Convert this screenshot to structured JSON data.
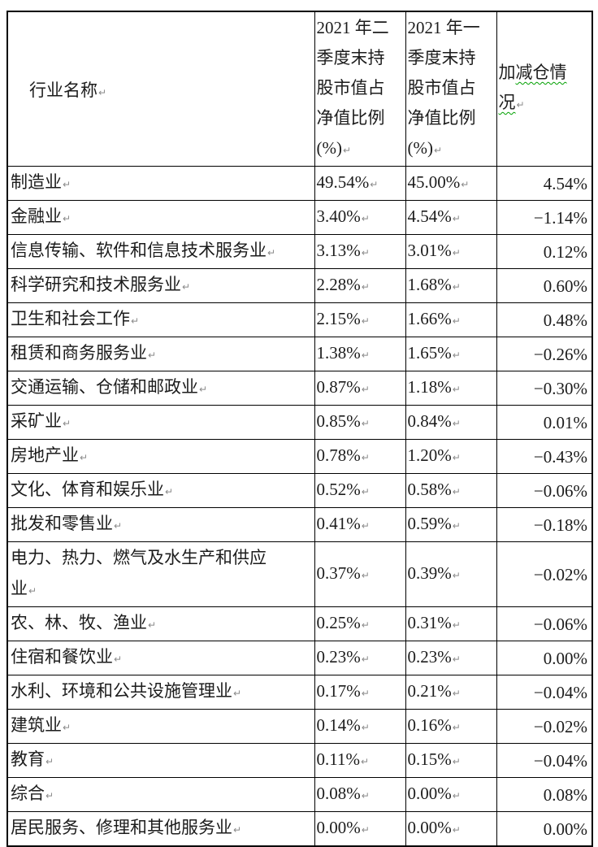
{
  "colors": {
    "border": "#000000",
    "text": "#1C1C1C",
    "paragraph_mark": "#8A8A8A",
    "grammar_underline": "#00A000"
  },
  "table": {
    "paragraph_mark": "↵",
    "headers": {
      "industry": "行业名称",
      "q2_2021": "2021 年二\n季度末持\n股市值占\n净值比例\n(%)",
      "q1_2021": "2021 年一\n季度末持\n股市值占\n净值比例\n(%)",
      "change_pre": "加",
      "change_wavy_line1": "减仓情",
      "change_wavy_line2": "况"
    },
    "rows": [
      {
        "name": "制造业",
        "q2": "49.54%",
        "q1": "45.00%",
        "change": "4.54%"
      },
      {
        "name": "金融业",
        "q2": "3.40%",
        "q1": "4.54%",
        "change": "−1.14%"
      },
      {
        "name": "信息传输、软件和信息技术服务业",
        "q2": "3.13%",
        "q1": "3.01%",
        "change": "0.12%"
      },
      {
        "name": "科学研究和技术服务业",
        "q2": "2.28%",
        "q1": "1.68%",
        "change": "0.60%"
      },
      {
        "name": "卫生和社会工作",
        "q2": "2.15%",
        "q1": "1.66%",
        "change": "0.48%"
      },
      {
        "name": "租赁和商务服务业",
        "q2": "1.38%",
        "q1": "1.65%",
        "change": "−0.26%"
      },
      {
        "name": "交通运输、仓储和邮政业",
        "q2": "0.87%",
        "q1": "1.18%",
        "change": "−0.30%"
      },
      {
        "name": "采矿业",
        "q2": "0.85%",
        "q1": "0.84%",
        "change": "0.01%"
      },
      {
        "name": "房地产业",
        "q2": "0.78%",
        "q1": "1.20%",
        "change": "−0.43%"
      },
      {
        "name": "文化、体育和娱乐业",
        "q2": "0.52%",
        "q1": "0.58%",
        "change": "−0.06%"
      },
      {
        "name": "批发和零售业",
        "q2": "0.41%",
        "q1": "0.59%",
        "change": "−0.18%"
      },
      {
        "name": "电力、热力、燃气及水生产和供应\n业",
        "q2": "0.37%",
        "q1": "0.39%",
        "change": "−0.02%"
      },
      {
        "name": "农、林、牧、渔业",
        "q2": "0.25%",
        "q1": "0.31%",
        "change": "−0.06%"
      },
      {
        "name": "住宿和餐饮业",
        "q2": "0.23%",
        "q1": "0.23%",
        "change": "0.00%"
      },
      {
        "name": "水利、环境和公共设施管理业",
        "q2": "0.17%",
        "q1": "0.21%",
        "change": "−0.04%"
      },
      {
        "name": "建筑业",
        "q2": "0.14%",
        "q1": "0.16%",
        "change": "−0.02%"
      },
      {
        "name": "教育",
        "q2": "0.11%",
        "q1": "0.15%",
        "change": "−0.04%"
      },
      {
        "name": "综合",
        "q2": "0.08%",
        "q1": "0.00%",
        "change": "0.08%"
      },
      {
        "name": "居民服务、修理和其他服务业",
        "q2": "0.00%",
        "q1": "0.00%",
        "change": "0.00%"
      }
    ]
  }
}
